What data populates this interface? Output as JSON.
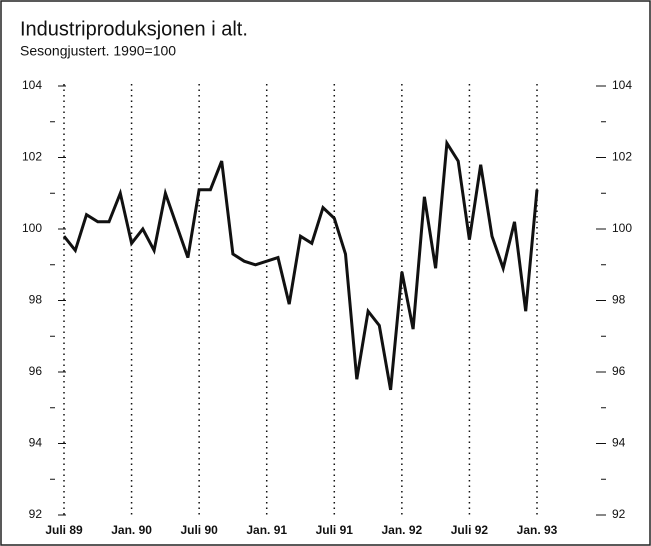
{
  "chart_data": {
    "type": "line",
    "title": "Industriproduksjonen i alt.",
    "subtitle": "Sesongjustert. 1990=100",
    "categories": [
      "Juli 89",
      null,
      null,
      null,
      null,
      null,
      "Jan. 90",
      null,
      null,
      null,
      null,
      null,
      "Juli 90",
      null,
      null,
      null,
      null,
      null,
      "Jan. 91",
      null,
      null,
      null,
      null,
      null,
      "Juli 91",
      null,
      null,
      null,
      null,
      null,
      "Jan. 92",
      null,
      null,
      null,
      null,
      null,
      "Juli 92",
      null,
      null,
      null,
      null,
      null,
      "Jan. 93"
    ],
    "series": [
      {
        "color": "#111111",
        "values": [
          99.8,
          99.4,
          100.4,
          100.2,
          100.2,
          101.0,
          99.6,
          100.0,
          99.4,
          101.0,
          100.1,
          99.2,
          101.1,
          101.1,
          101.9,
          99.3,
          99.1,
          99.0,
          99.1,
          99.2,
          97.9,
          99.8,
          99.6,
          100.6,
          100.3,
          99.3,
          95.8,
          97.7,
          97.3,
          95.5,
          98.8,
          97.2,
          100.9,
          98.9,
          102.4,
          101.9,
          99.7,
          101.8,
          99.8,
          98.9,
          100.2,
          97.7,
          101.1
        ]
      }
    ],
    "ylim": [
      92,
      104
    ],
    "yticks": [
      92,
      94,
      96,
      98,
      100,
      102,
      104
    ],
    "yminorticks": [
      93,
      95,
      97,
      99,
      101,
      103
    ],
    "grid": true
  }
}
